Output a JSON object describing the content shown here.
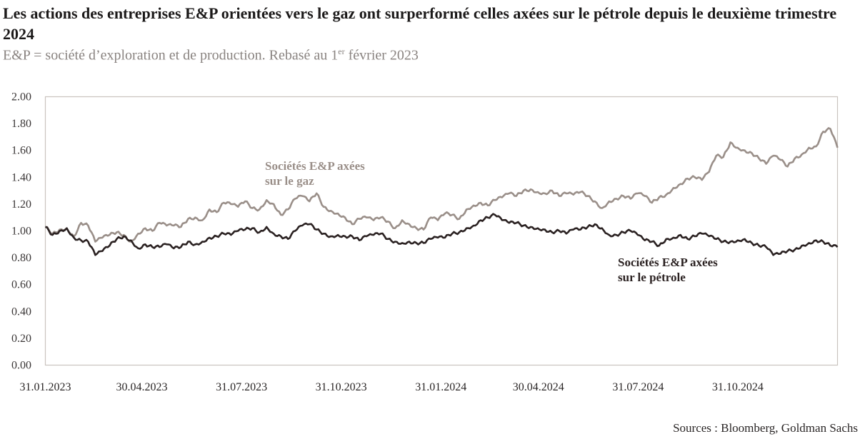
{
  "header": {
    "title": "Les actions des entreprises E&P orientées vers le gaz ont surperformé celles axées sur le pétrole depuis le deuxième trimestre 2024",
    "subtitle_main": "E&P = société d’exploration et de production. Rebasé au 1",
    "subtitle_sup": "er",
    "subtitle_end": " février 2023"
  },
  "footer": {
    "source": "Sources : Bloomberg, Goldman Sachs"
  },
  "chart_data": {
    "type": "line",
    "title": "Les actions des entreprises E&P orientées vers le gaz ont surperformé celles axées sur le pétrole depuis le deuxième trimestre 2024",
    "subtitle": "E&P = société d’exploration et de production. Rebasé au 1er février 2023",
    "xlabel": "",
    "ylabel": "",
    "ylim": [
      0,
      2.0
    ],
    "xlim": [
      "2023-01-31",
      "2025-01-31"
    ],
    "grid": false,
    "legend": "inline annotations",
    "y_ticks": [
      "0.00",
      "0.20",
      "0.40",
      "0.60",
      "0.80",
      "1.00",
      "1.20",
      "1.40",
      "1.60",
      "1.80",
      "2.00"
    ],
    "x_ticks": [
      "31.01.2023",
      "30.04.2023",
      "31.07.2023",
      "31.10.2023",
      "31.01.2024",
      "30.04.2024",
      "31.07.2024",
      "31.10.2024"
    ],
    "x_tick_dates": [
      "2023-01-31",
      "2023-04-30",
      "2023-07-31",
      "2023-10-31",
      "2024-01-31",
      "2024-04-30",
      "2024-07-31",
      "2024-10-31"
    ],
    "x_start_date": "2023-01-31",
    "x_step_days": 6.6,
    "colors": {
      "gas": "#9a8f89",
      "oil": "#2b2222"
    },
    "annotations": [
      {
        "series": "gas",
        "lines": [
          "Sociétés E&P axées",
          "sur le gaz"
        ],
        "anchor_date": "2023-09-01",
        "anchor_value": 1.46
      },
      {
        "series": "oil",
        "lines": [
          "Sociétés E&P axées",
          "sur le pétrole"
        ],
        "anchor_date": "2024-09-15",
        "anchor_value": 0.77
      }
    ],
    "series": [
      {
        "name": "Sociétés E&P axées sur le gaz",
        "key": "gas",
        "values": [
          1.03,
          0.98,
          1.01,
          1.02,
          0.96,
          1.06,
          1.04,
          0.92,
          0.95,
          0.97,
          0.99,
          0.97,
          0.92,
          0.98,
          1.02,
          1.0,
          1.06,
          1.04,
          1.04,
          1.03,
          1.09,
          1.1,
          1.08,
          1.16,
          1.14,
          1.21,
          1.2,
          1.18,
          1.22,
          1.17,
          1.16,
          1.23,
          1.2,
          1.12,
          1.16,
          1.24,
          1.26,
          1.22,
          1.28,
          1.18,
          1.15,
          1.13,
          1.1,
          1.05,
          1.09,
          1.1,
          1.08,
          1.1,
          1.07,
          1.02,
          1.08,
          1.05,
          1.02,
          1.01,
          1.1,
          1.08,
          1.13,
          1.12,
          1.09,
          1.16,
          1.19,
          1.21,
          1.19,
          1.23,
          1.25,
          1.28,
          1.26,
          1.3,
          1.31,
          1.29,
          1.28,
          1.3,
          1.26,
          1.28,
          1.27,
          1.29,
          1.26,
          1.22,
          1.17,
          1.22,
          1.24,
          1.26,
          1.24,
          1.28,
          1.26,
          1.21,
          1.25,
          1.27,
          1.32,
          1.35,
          1.39,
          1.4,
          1.38,
          1.44,
          1.56,
          1.55,
          1.66,
          1.62,
          1.6,
          1.58,
          1.54,
          1.5,
          1.56,
          1.53,
          1.48,
          1.54,
          1.57,
          1.62,
          1.63,
          1.74,
          1.76,
          1.62
        ]
      },
      {
        "name": "Sociétés E&P axées sur le pétrole",
        "key": "oil",
        "values": [
          1.03,
          0.97,
          1.0,
          1.02,
          0.95,
          0.93,
          0.92,
          0.82,
          0.85,
          0.89,
          0.94,
          0.96,
          0.93,
          0.87,
          0.9,
          0.88,
          0.88,
          0.9,
          0.87,
          0.88,
          0.92,
          0.9,
          0.92,
          0.95,
          0.96,
          0.98,
          0.97,
          1.0,
          1.01,
          1.02,
          0.99,
          1.03,
          0.98,
          0.96,
          0.94,
          1.0,
          1.04,
          1.05,
          1.01,
          0.98,
          0.96,
          0.97,
          0.96,
          0.96,
          0.93,
          0.96,
          0.97,
          0.98,
          0.94,
          0.92,
          0.91,
          0.92,
          0.91,
          0.91,
          0.94,
          0.95,
          0.95,
          0.98,
          0.99,
          1.02,
          1.04,
          1.08,
          1.1,
          1.12,
          1.08,
          1.06,
          1.06,
          1.04,
          1.03,
          1.02,
          1.01,
          0.99,
          1.0,
          0.98,
          1.01,
          1.01,
          1.03,
          1.05,
          1.02,
          0.97,
          0.97,
          0.99,
          1.0,
          0.97,
          0.93,
          0.92,
          0.89,
          0.94,
          0.95,
          0.97,
          0.94,
          0.96,
          0.98,
          0.96,
          0.94,
          0.92,
          0.92,
          0.93,
          0.94,
          0.91,
          0.89,
          0.88,
          0.82,
          0.83,
          0.85,
          0.86,
          0.89,
          0.91,
          0.93,
          0.92,
          0.89,
          0.88
        ]
      }
    ]
  }
}
